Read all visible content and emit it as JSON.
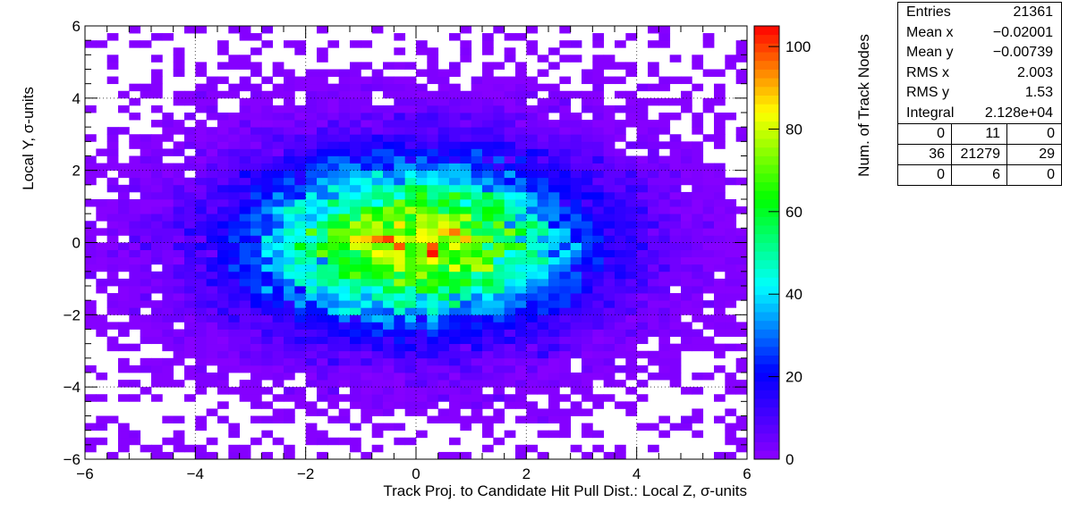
{
  "chart_data": {
    "type": "heatmap",
    "title": "",
    "xlabel": "Track Proj. to Candidate Hit Pull Dist.: Local Z, σ-units",
    "ylabel": "Local Y, σ-units",
    "zlabel": "Num. of Track Nodes",
    "xlim": [
      -6,
      6
    ],
    "ylim": [
      -6,
      6
    ],
    "zlim": [
      0,
      105
    ],
    "nbins_x": 60,
    "nbins_y": 60,
    "x_ticks": [
      {
        "v": -6,
        "label": "−6"
      },
      {
        "v": -4,
        "label": "−4"
      },
      {
        "v": -2,
        "label": "−2"
      },
      {
        "v": 0,
        "label": "0"
      },
      {
        "v": 2,
        "label": "2"
      },
      {
        "v": 4,
        "label": "4"
      },
      {
        "v": 6,
        "label": "6"
      }
    ],
    "y_ticks": [
      {
        "v": -6,
        "label": "−6"
      },
      {
        "v": -4,
        "label": "−4"
      },
      {
        "v": -2,
        "label": "−2"
      },
      {
        "v": 0,
        "label": "0"
      },
      {
        "v": 2,
        "label": "2"
      },
      {
        "v": 4,
        "label": "4"
      },
      {
        "v": 6,
        "label": "6"
      }
    ],
    "z_ticks": [
      {
        "v": 0,
        "label": "0"
      },
      {
        "v": 20,
        "label": "20"
      },
      {
        "v": 40,
        "label": "40"
      },
      {
        "v": 60,
        "label": "60"
      },
      {
        "v": 80,
        "label": "80"
      },
      {
        "v": 100,
        "label": "100"
      }
    ],
    "distribution": {
      "shape": "2D Gaussian",
      "entries": 21361,
      "mean_x": -0.02001,
      "mean_y": -0.00739,
      "rms_x": 2.003,
      "rms_y": 1.53,
      "peak_value": 104,
      "peak_bin_center": [
        0.3,
        -0.3
      ]
    },
    "grid": true,
    "palette": "rainbow (purple → blue → cyan → green → yellow → red)",
    "colors": {
      "palette_stops": [
        "#8C00FF",
        "#0000FF",
        "#00FFFF",
        "#00FF00",
        "#FFFF00",
        "#FF0000"
      ]
    }
  },
  "stats": {
    "rows": [
      {
        "label": "Entries",
        "value": "21361"
      },
      {
        "label": "Mean x",
        "value": "−0.02001"
      },
      {
        "label": "Mean y",
        "value": "−0.00739"
      },
      {
        "label": "RMS x",
        "value": "2.003"
      },
      {
        "label": "RMS y",
        "value": "1.53"
      },
      {
        "label": "Integral",
        "value": "2.128e+04"
      }
    ],
    "grid": [
      [
        "0",
        "11",
        "0"
      ],
      [
        "36",
        "21279",
        "29"
      ],
      [
        "0",
        "6",
        "0"
      ]
    ]
  }
}
